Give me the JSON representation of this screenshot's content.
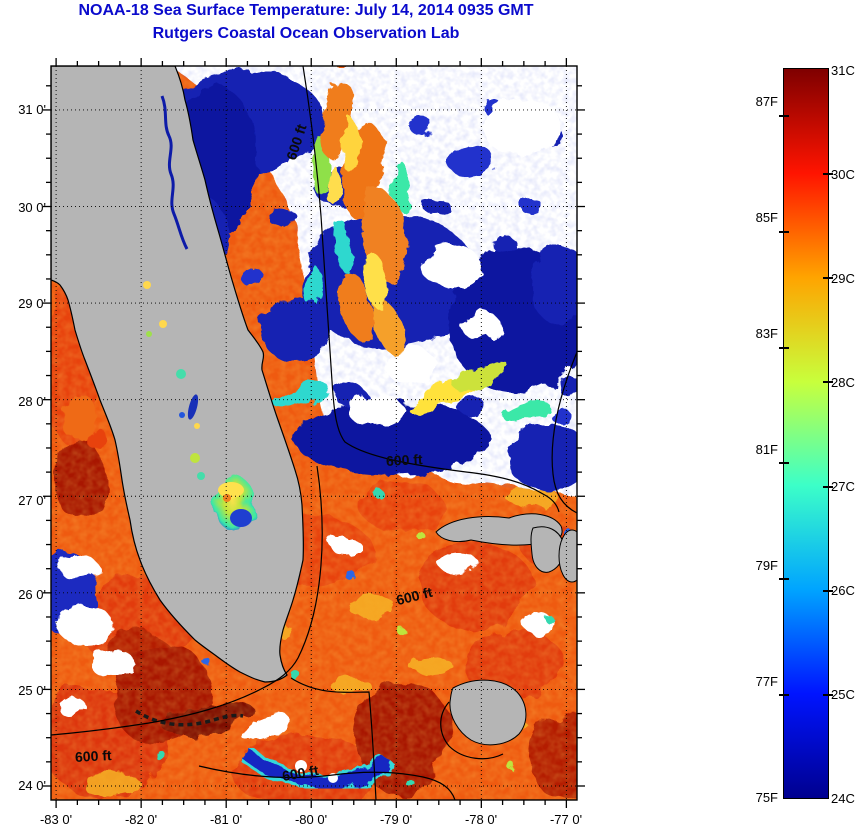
{
  "header": {
    "title": "NOAA-18 Sea Surface Temperature:  July 14, 2014 0935 GMT",
    "subtitle": "Rutgers Coastal Ocean Observation Lab",
    "title_color": "#0a0acc"
  },
  "map": {
    "x_axis": {
      "min": -83.06,
      "max": -76.875,
      "minor_step": 0.25,
      "ticks": [
        {
          "label": "-83 0'",
          "deg": -83
        },
        {
          "label": "-82 0'",
          "deg": -82
        },
        {
          "label": "-81 0'",
          "deg": -81
        },
        {
          "label": "-80 0'",
          "deg": -80
        },
        {
          "label": "-79 0'",
          "deg": -79
        },
        {
          "label": "-78 0'",
          "deg": -78
        },
        {
          "label": "-77 0'",
          "deg": -77
        }
      ]
    },
    "y_axis": {
      "min": 23.855,
      "max": 31.455,
      "minor_step": 0.25,
      "ticks": [
        {
          "label": "31 0'",
          "deg": 31
        },
        {
          "label": "30 0'",
          "deg": 30
        },
        {
          "label": "29 0'",
          "deg": 29
        },
        {
          "label": "28 0'",
          "deg": 28
        },
        {
          "label": "27 0'",
          "deg": 27
        },
        {
          "label": "26 0'",
          "deg": 26
        },
        {
          "label": "25 0'",
          "deg": 25
        },
        {
          "label": "24 0'",
          "deg": 24
        }
      ]
    },
    "contour_labels": [
      "600 ft",
      "600 ft",
      "600 ft",
      "600 ft",
      "600 ft"
    ],
    "land_color": "#b5b5b5",
    "cloud_color": "#ffffff"
  },
  "colorbar": {
    "min_c": 24,
    "max_c": 31,
    "c_labels": [
      {
        "text": "31C",
        "temp": 31
      },
      {
        "text": "30C",
        "temp": 30
      },
      {
        "text": "29C",
        "temp": 29
      },
      {
        "text": "28C",
        "temp": 28
      },
      {
        "text": "27C",
        "temp": 27
      },
      {
        "text": "26C",
        "temp": 26
      },
      {
        "text": "25C",
        "temp": 25
      },
      {
        "text": "24C",
        "temp": 24
      }
    ],
    "f_labels": [
      {
        "text": "87F",
        "temp_f": 87
      },
      {
        "text": "85F",
        "temp_f": 85
      },
      {
        "text": "83F",
        "temp_f": 83
      },
      {
        "text": "81F",
        "temp_f": 81
      },
      {
        "text": "79F",
        "temp_f": 79
      },
      {
        "text": "77F",
        "temp_f": 77
      },
      {
        "text": "75F",
        "temp_f": 75
      }
    ],
    "gradient": [
      {
        "t": 0.0,
        "color": "#7f0000"
      },
      {
        "t": 0.143,
        "color": "#ff1400"
      },
      {
        "t": 0.286,
        "color": "#ffa400"
      },
      {
        "t": 0.429,
        "color": "#c8ff3c"
      },
      {
        "t": 0.571,
        "color": "#3cffc8"
      },
      {
        "t": 0.714,
        "color": "#00a4ff"
      },
      {
        "t": 0.857,
        "color": "#0014ff"
      },
      {
        "t": 1.0,
        "color": "#00008f"
      }
    ]
  }
}
